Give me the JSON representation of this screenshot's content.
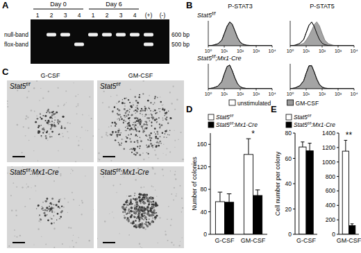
{
  "panel_a": {
    "label": "A",
    "lane_groups": [
      {
        "label": "Day 0",
        "lanes": [
          {
            "label": "1",
            "bands": []
          },
          {
            "label": "2",
            "bands": [
              "null-band"
            ]
          },
          {
            "label": "3",
            "bands": [
              "null-band"
            ]
          },
          {
            "label": "4",
            "bands": [
              "flox-band"
            ]
          }
        ]
      },
      {
        "label": "Day 6",
        "lanes": [
          {
            "label": "1",
            "bands": [
              "null-band"
            ]
          },
          {
            "label": "2",
            "bands": [
              "null-band"
            ]
          },
          {
            "label": "3",
            "bands": [
              "null-band"
            ]
          },
          {
            "label": "4",
            "bands": [
              "null-band"
            ]
          }
        ]
      }
    ],
    "controls": [
      {
        "label": "(+)",
        "bands": [
          "null-band",
          "flox-band"
        ]
      },
      {
        "label": "(-)",
        "bands": []
      }
    ],
    "bands": [
      {
        "label": "null-band",
        "size": "600 bp"
      },
      {
        "label": "flox-band",
        "size": "500 bp"
      }
    ]
  },
  "panel_b": {
    "label": "B",
    "columns": [
      "P-STAT3",
      "P-STAT5"
    ],
    "rows": [
      "Stat5f/f",
      "Stat5f/f;Mx1-Cre"
    ]
  },
  "panel_c": {
    "label": "C",
    "columns": [
      "G-CSF",
      "GM-CSF"
    ],
    "rows": [
      "Stat5f/f",
      "Stat5f/f:Mx1-Cre"
    ]
  },
  "panel_d": {
    "label": "D"
  },
  "panel_e": {
    "label": "E"
  },
  "chart_data": [
    {
      "type": "area",
      "log": "x",
      "xlim": [
        1,
        10000
      ],
      "ylim": [
        0,
        100
      ],
      "xticks": [
        {
          "value": 1,
          "label": "10⁰"
        },
        {
          "value": 10,
          "label": "10¹"
        },
        {
          "value": 100,
          "label": "10²"
        },
        {
          "value": 1000,
          "label": "10³"
        },
        {
          "value": 10000,
          "label": "10⁴"
        }
      ],
      "tick_labels": "x",
      "legend": "bottom",
      "x": [
        1,
        2,
        4,
        7,
        10,
        15,
        22,
        32,
        46,
        68,
        100,
        150,
        250,
        500,
        1000,
        10000
      ],
      "series": [
        {
          "name": "unstimulated",
          "color": "#ffffff",
          "values": [
            0,
            2,
            8,
            22,
            48,
            78,
            95,
            85,
            60,
            32,
            14,
            6,
            2,
            1,
            0,
            0
          ]
        },
        {
          "name": "GM-CSF",
          "color": "#9a9a9a",
          "values": [
            0,
            2,
            7,
            20,
            45,
            75,
            96,
            88,
            62,
            34,
            15,
            6,
            2,
            1,
            0,
            0
          ]
        }
      ]
    },
    {
      "type": "area",
      "log": "x",
      "xlim": [
        1,
        10000
      ],
      "ylim": [
        0,
        100
      ],
      "xticks": [
        {
          "value": 1,
          "label": "10⁰"
        },
        {
          "value": 10,
          "label": "10¹"
        },
        {
          "value": 100,
          "label": "10²"
        },
        {
          "value": 1000,
          "label": "10³"
        },
        {
          "value": 10000,
          "label": "10⁴"
        }
      ],
      "tick_labels": "x",
      "x": [
        1,
        2,
        4,
        7,
        10,
        15,
        22,
        32,
        46,
        68,
        100,
        150,
        250,
        500,
        1000,
        10000
      ],
      "series": [
        {
          "color": "#ffffff",
          "values": [
            0,
            2,
            9,
            25,
            52,
            82,
            95,
            78,
            50,
            25,
            10,
            4,
            1,
            0,
            0,
            0
          ]
        },
        {
          "color": "#9a9a9a",
          "values": [
            0,
            1,
            4,
            10,
            22,
            40,
            62,
            85,
            96,
            80,
            50,
            22,
            8,
            2,
            0,
            0
          ]
        }
      ]
    },
    {
      "type": "area",
      "log": "x",
      "xlim": [
        1,
        10000
      ],
      "ylim": [
        0,
        100
      ],
      "xticks": [
        {
          "value": 1,
          "label": "10⁰"
        },
        {
          "value": 10,
          "label": "10¹"
        },
        {
          "value": 100,
          "label": "10²"
        },
        {
          "value": 1000,
          "label": "10³"
        },
        {
          "value": 10000,
          "label": "10⁴"
        }
      ],
      "tick_labels": "x",
      "x": [
        1,
        2,
        4,
        7,
        10,
        15,
        22,
        32,
        46,
        68,
        100,
        150,
        250,
        500,
        1000,
        10000
      ],
      "series": [
        {
          "color": "#ffffff",
          "values": [
            0,
            3,
            10,
            28,
            58,
            88,
            95,
            72,
            44,
            20,
            8,
            3,
            1,
            0,
            0,
            0
          ]
        },
        {
          "color": "#9a9a9a",
          "values": [
            0,
            3,
            11,
            30,
            60,
            90,
            94,
            70,
            42,
            19,
            8,
            3,
            1,
            0,
            0,
            0
          ]
        }
      ]
    },
    {
      "type": "area",
      "log": "x",
      "xlim": [
        1,
        10000
      ],
      "ylim": [
        0,
        100
      ],
      "xticks": [
        {
          "value": 1,
          "label": "10⁰"
        },
        {
          "value": 10,
          "label": "10¹"
        },
        {
          "value": 100,
          "label": "10²"
        },
        {
          "value": 1000,
          "label": "10³"
        },
        {
          "value": 10000,
          "label": "10⁴"
        }
      ],
      "tick_labels": "x",
      "x": [
        1,
        2,
        4,
        7,
        10,
        15,
        22,
        32,
        46,
        68,
        100,
        150,
        250,
        500,
        1000,
        10000
      ],
      "series": [
        {
          "color": "#ffffff",
          "values": [
            0,
            3,
            12,
            32,
            62,
            92,
            92,
            66,
            38,
            16,
            6,
            2,
            1,
            0,
            0,
            0
          ]
        },
        {
          "color": "#9a9a9a",
          "values": [
            0,
            3,
            11,
            30,
            60,
            90,
            94,
            70,
            42,
            19,
            8,
            3,
            1,
            0,
            0,
            0
          ]
        }
      ]
    },
    {
      "type": "bar",
      "y_label": "Number of colonies",
      "categories": [
        "G-CSF",
        "GM-CSF"
      ],
      "ylim": [
        0,
        180
      ],
      "yticks": [
        0,
        40,
        80,
        120,
        160
      ],
      "grid": false,
      "legend": "top",
      "series": [
        {
          "name": "Stat5f/f",
          "color": "#ffffff",
          "values": [
            58,
            142
          ],
          "errors": [
            17,
            28
          ]
        },
        {
          "name": "Stat5f/f:Mx1-Cre",
          "color": "#000000",
          "values": [
            57,
            69
          ],
          "errors": [
            15,
            10
          ]
        }
      ],
      "annotations": [
        {
          "text": "*",
          "category": "GM-CSF"
        }
      ]
    },
    {
      "type": "bar",
      "y_label": "Cell number per colony",
      "categories": [
        "G-CSF"
      ],
      "ylim": [
        0,
        80
      ],
      "yticks": [
        0,
        20,
        40,
        60,
        80
      ],
      "grid": false,
      "legend": "top",
      "series": [
        {
          "name": "Stat5f/f",
          "color": "#ffffff",
          "values": [
            69
          ],
          "errors": [
            4
          ]
        },
        {
          "name": "Stat5f/f:Mx1-Cre",
          "color": "#000000",
          "values": [
            66
          ],
          "errors": [
            6
          ]
        }
      ]
    },
    {
      "type": "bar",
      "categories": [
        "GM-CSF"
      ],
      "ylim": [
        0,
        1400
      ],
      "yticks": [
        0,
        200,
        400,
        600,
        800,
        1000,
        1200,
        1400
      ],
      "grid": false,
      "series": [
        {
          "color": "#ffffff",
          "values": [
            1150
          ],
          "errors": [
            150
          ]
        },
        {
          "color": "#000000",
          "values": [
            120
          ],
          "errors": [
            25
          ]
        }
      ],
      "annotations": [
        {
          "text": "**",
          "category": "GM-CSF"
        }
      ]
    }
  ]
}
